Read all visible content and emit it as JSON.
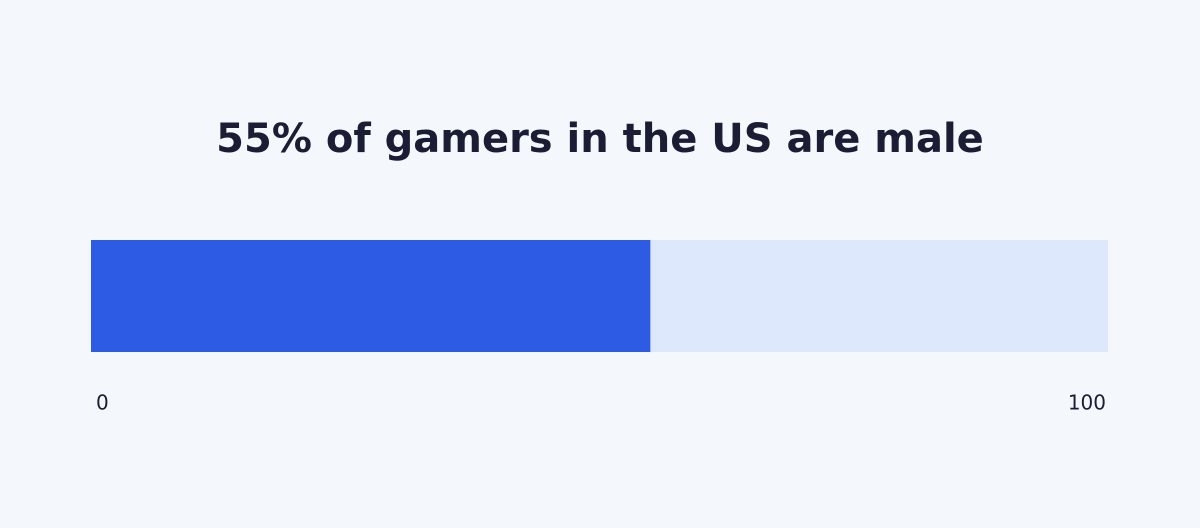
{
  "chart_data": {
    "type": "bar",
    "title": "55% of gamers in the US are male",
    "values": [
      55
    ],
    "color": "#2d5be3",
    "track_color": "#dde8fd",
    "xlim": [
      0,
      100
    ],
    "xticks": [
      0,
      100
    ]
  }
}
